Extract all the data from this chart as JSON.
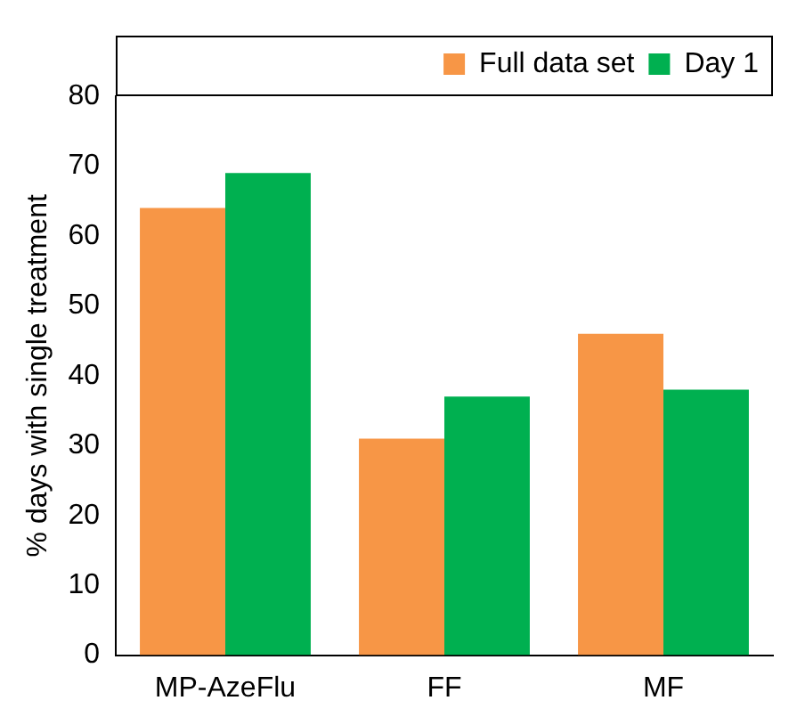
{
  "chart_data": {
    "type": "bar",
    "ylabel": "% days with single treatment",
    "categories": [
      "MP-AzeFlu",
      "FF",
      "MF"
    ],
    "series": [
      {
        "name": "Full data set",
        "color": "#f79646",
        "values": [
          64,
          31,
          46
        ]
      },
      {
        "name": "Day 1",
        "color": "#00b050",
        "values": [
          69,
          37,
          38
        ]
      }
    ],
    "ylim": [
      0,
      80
    ],
    "yticks": [
      0,
      10,
      20,
      30,
      40,
      50,
      60,
      70,
      80
    ],
    "grid": false,
    "legend": "top right"
  }
}
